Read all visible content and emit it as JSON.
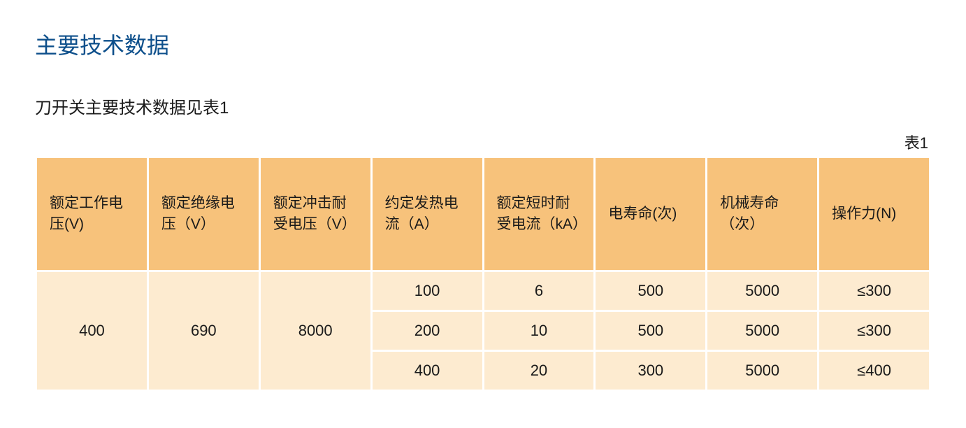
{
  "title": "主要技术数据",
  "subtitle": "刀开关主要技术数据见表1",
  "tableLabel": "表1",
  "colors": {
    "titleColor": "#0d4f8b",
    "headerBg": "#f7c27b",
    "bodyBg": "#fdebd0",
    "textColor": "#1a1a1a",
    "pageBg": "#ffffff"
  },
  "typography": {
    "titleFontSize": 32,
    "subtitleFontSize": 24,
    "headerFontSize": 21,
    "cellFontSize": 22
  },
  "table": {
    "type": "table",
    "columns": [
      "额定工作电压(V)",
      "额定绝缘电压（V）",
      "额定冲击耐受电压（V）",
      "约定发热电流（A）",
      "额定短时耐受电流（kA）",
      "电寿命(次)",
      "机械寿命（次）",
      "操作力(N)"
    ],
    "mergedCells": {
      "col0": {
        "rowspan": 3,
        "value": "400"
      },
      "col1": {
        "rowspan": 3,
        "value": "690"
      },
      "col2": {
        "rowspan": 3,
        "value": "8000"
      }
    },
    "rows": [
      [
        "100",
        "6",
        "500",
        "5000",
        "≤300"
      ],
      [
        "200",
        "10",
        "500",
        "5000",
        "≤300"
      ],
      [
        "400",
        "20",
        "300",
        "5000",
        "≤400"
      ]
    ]
  }
}
